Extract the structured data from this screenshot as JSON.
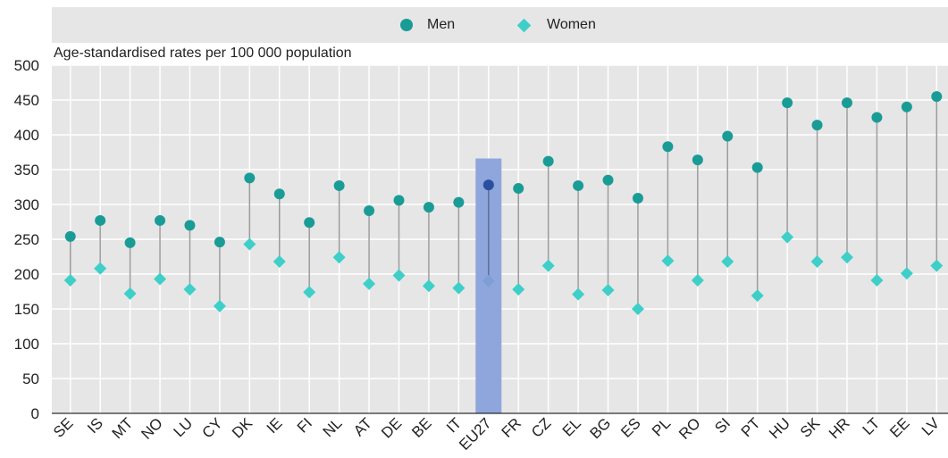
{
  "chart_data": {
    "type": "scatter",
    "ylabel": "Age-standardised rates per 100 000 population",
    "xlabel": "",
    "ylim": [
      0,
      500
    ],
    "yticks": [
      0,
      50,
      100,
      150,
      200,
      250,
      300,
      350,
      400,
      450,
      500
    ],
    "grid": true,
    "legend_position": "top",
    "highlight_category": "EU27",
    "categories": [
      "SE",
      "IS",
      "MT",
      "NO",
      "LU",
      "CY",
      "DK",
      "IE",
      "FI",
      "NL",
      "AT",
      "DE",
      "BE",
      "IT",
      "EU27",
      "FR",
      "CZ",
      "EL",
      "BG",
      "ES",
      "PL",
      "RO",
      "SI",
      "PT",
      "HU",
      "SK",
      "HR",
      "LT",
      "EE",
      "LV"
    ],
    "series": [
      {
        "name": "Men",
        "marker": "circle",
        "color": "#1a9c96",
        "values": [
          254,
          277,
          245,
          277,
          270,
          246,
          338,
          315,
          274,
          327,
          291,
          306,
          296,
          303,
          328,
          323,
          362,
          327,
          335,
          309,
          383,
          364,
          398,
          353,
          446,
          414,
          446,
          425,
          440,
          455
        ]
      },
      {
        "name": "Women",
        "marker": "diamond",
        "color": "#3ecfc9",
        "values": [
          191,
          208,
          172,
          193,
          178,
          154,
          243,
          218,
          174,
          224,
          186,
          198,
          183,
          180,
          190,
          178,
          212,
          171,
          177,
          150,
          219,
          191,
          218,
          169,
          253,
          218,
          224,
          191,
          201,
          212
        ]
      }
    ],
    "colors": {
      "men": "#1a9c96",
      "women": "#3ecfc9",
      "men_highlight": "#2a4f9e",
      "women_highlight": "#7e9fd6",
      "highlight_bar": "#8fa6dc",
      "stem": "#9b9b9b",
      "plot_bg": "#e6e6e6",
      "grid": "#ffffff"
    }
  }
}
